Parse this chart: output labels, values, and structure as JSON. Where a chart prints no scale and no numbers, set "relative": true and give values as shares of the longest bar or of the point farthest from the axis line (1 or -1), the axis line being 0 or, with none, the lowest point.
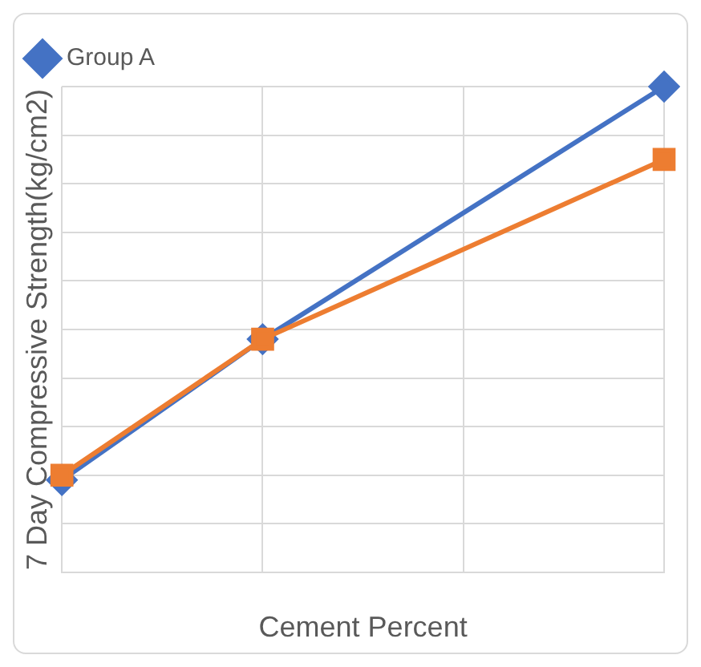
{
  "chart_data": {
    "type": "line",
    "xlabel": "Cement Percent",
    "ylabel": "7 Day Compressive Strength(kg/cm2)",
    "categories": [
      null,
      null,
      null,
      null
    ],
    "relative": true,
    "grid": true,
    "legend": "top left",
    "series": [
      {
        "name": "Group A",
        "color": "#4472c4",
        "values": [
          0.19,
          0.48,
          null,
          1
        ],
        "marker": "diamond"
      },
      {
        "color": "#ed7d31",
        "values": [
          0.2,
          0.48,
          null,
          0.85
        ],
        "marker": "square"
      }
    ]
  }
}
